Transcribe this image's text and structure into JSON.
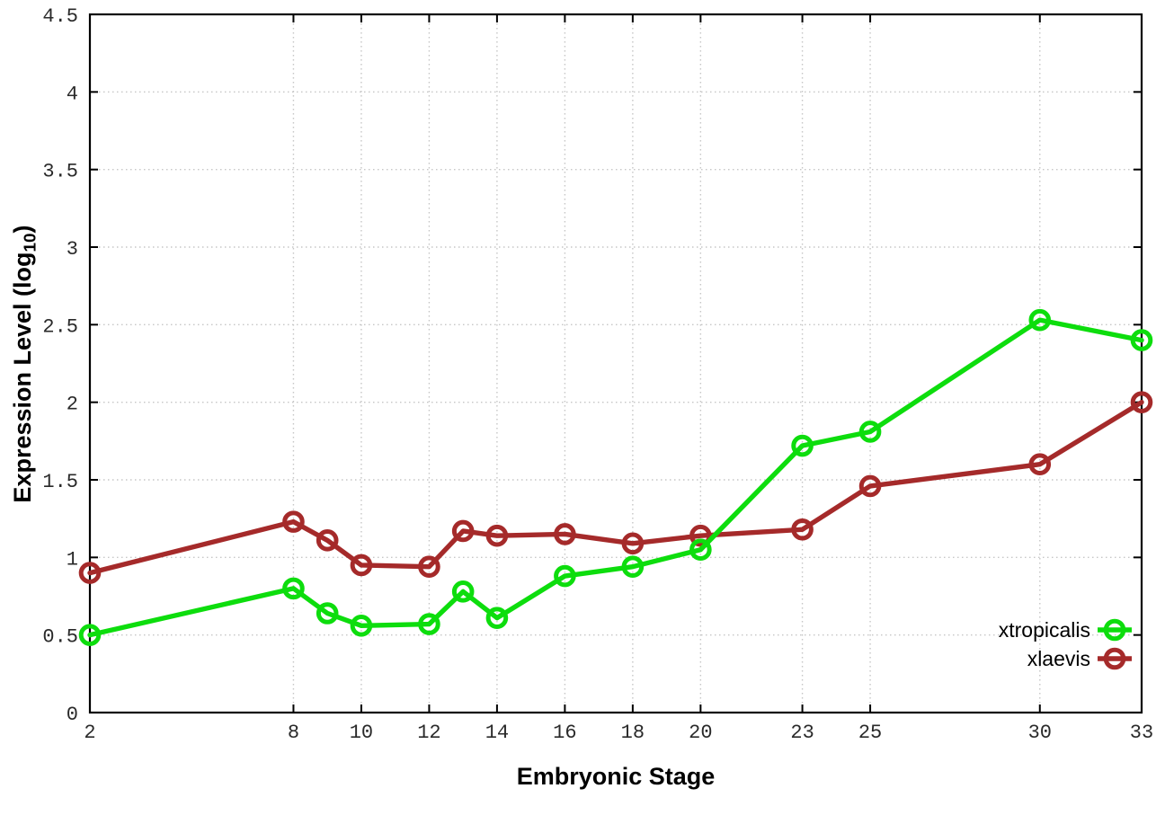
{
  "chart_data": {
    "type": "line",
    "title": "",
    "xlabel": "Embryonic Stage",
    "ylabel": "Expression Level (log10)",
    "ylabel_parts": {
      "prefix": "Expression Level (log",
      "sub": "10",
      "suffix": ")"
    },
    "xlim": [
      2,
      33
    ],
    "ylim": [
      0,
      4.5
    ],
    "x_ticks": [
      2,
      8,
      10,
      12,
      14,
      16,
      18,
      20,
      23,
      25,
      30,
      33
    ],
    "x_tick_labels": [
      "2",
      "8",
      "10",
      "12",
      "14",
      "16",
      "18",
      "20",
      "23",
      "25",
      "30",
      "33"
    ],
    "y_ticks": [
      0,
      0.5,
      1,
      1.5,
      2,
      2.5,
      3,
      3.5,
      4,
      4.5
    ],
    "y_tick_labels": [
      "0",
      "0.5",
      "1",
      "1.5",
      "2",
      "2.5",
      "3",
      "3.5",
      "4",
      "4.5"
    ],
    "grid": true,
    "legend_position": "bottom-right",
    "x": [
      2,
      8,
      9,
      10,
      12,
      13,
      14,
      16,
      18,
      20,
      23,
      25,
      30,
      33
    ],
    "series": [
      {
        "name": "xtropicalis",
        "color": "#0ddd0d",
        "values": [
          0.5,
          0.8,
          0.64,
          0.56,
          0.57,
          0.78,
          0.61,
          0.88,
          0.94,
          1.05,
          1.72,
          1.81,
          2.53,
          2.4
        ]
      },
      {
        "name": "xlaevis",
        "color": "#a52a2a",
        "values": [
          0.9,
          1.23,
          1.11,
          0.95,
          0.94,
          1.17,
          1.14,
          1.15,
          1.09,
          1.14,
          1.18,
          1.46,
          1.6,
          2.0
        ]
      }
    ],
    "marker": "open-circle"
  }
}
